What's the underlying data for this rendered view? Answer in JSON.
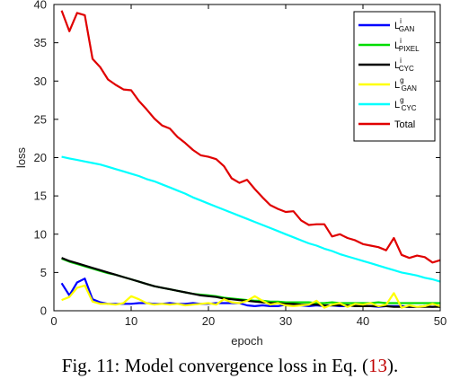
{
  "chart_data": {
    "type": "line",
    "xlabel": "epoch",
    "ylabel": "loss",
    "xlim": [
      0,
      50
    ],
    "ylim": [
      0,
      40
    ],
    "xticks": [
      0,
      10,
      20,
      30,
      40,
      50
    ],
    "yticks": [
      0,
      5,
      10,
      15,
      20,
      25,
      30,
      35,
      40
    ],
    "legend_position": "top-right",
    "grid": false,
    "series": [
      {
        "name": "L_GAN^i",
        "legend_base": "L",
        "legend_sub": "GAN",
        "legend_sup": "i",
        "color": "#0000ff",
        "x": [
          1,
          2,
          3,
          4,
          5,
          6,
          7,
          8,
          9,
          10,
          11,
          12,
          13,
          14,
          15,
          16,
          17,
          18,
          19,
          20,
          21,
          22,
          23,
          24,
          25,
          26,
          27,
          28,
          29,
          30,
          31,
          32,
          33,
          34,
          35,
          36,
          37,
          38,
          39,
          40,
          41,
          42,
          43,
          44,
          45,
          46,
          47,
          48,
          49,
          50
        ],
        "y": [
          3.6,
          2.0,
          3.7,
          4.2,
          1.5,
          1.1,
          0.9,
          0.9,
          0.9,
          0.9,
          1.0,
          1.0,
          0.9,
          0.9,
          1.0,
          0.9,
          0.9,
          1.0,
          0.9,
          0.9,
          1.0,
          1.0,
          1.0,
          1.0,
          0.7,
          0.6,
          0.7,
          0.6,
          0.6,
          0.8,
          0.8,
          0.7,
          0.6,
          0.7,
          0.6,
          0.7,
          0.6,
          0.6,
          0.8,
          0.6,
          0.6,
          0.5,
          0.6,
          0.6,
          0.6,
          0.5,
          0.5,
          0.6,
          0.5,
          0.6
        ]
      },
      {
        "name": "L_PIXEL^i",
        "legend_base": "L",
        "legend_sub": "PIXEL",
        "legend_sup": "i",
        "color": "#00dd00",
        "x": [
          1,
          2,
          3,
          4,
          5,
          6,
          7,
          8,
          9,
          10,
          11,
          12,
          13,
          14,
          15,
          16,
          17,
          18,
          19,
          20,
          21,
          22,
          23,
          24,
          25,
          26,
          27,
          28,
          29,
          30,
          31,
          32,
          33,
          34,
          35,
          36,
          37,
          38,
          39,
          40,
          41,
          42,
          43,
          44,
          45,
          46,
          47,
          48,
          49,
          50
        ],
        "y": [
          6.8,
          6.4,
          6.1,
          5.8,
          5.5,
          5.2,
          4.9,
          4.7,
          4.4,
          4.1,
          3.8,
          3.5,
          3.2,
          3.0,
          2.8,
          2.6,
          2.4,
          2.2,
          2.1,
          2.0,
          1.9,
          1.7,
          1.6,
          1.5,
          1.4,
          1.3,
          1.3,
          1.2,
          1.2,
          1.1,
          1.1,
          1.1,
          1.1,
          1.0,
          1.0,
          1.1,
          1.0,
          1.0,
          1.0,
          1.0,
          1.0,
          1.1,
          1.0,
          1.0,
          1.0,
          1.0,
          1.0,
          1.0,
          1.0,
          1.0
        ]
      },
      {
        "name": "L_CYC^i",
        "legend_base": "L",
        "legend_sub": "CYC",
        "legend_sup": "i",
        "color": "#000000",
        "x": [
          1,
          2,
          3,
          4,
          5,
          6,
          7,
          8,
          9,
          10,
          11,
          12,
          13,
          14,
          15,
          16,
          17,
          18,
          19,
          20,
          21,
          22,
          23,
          24,
          25,
          26,
          27,
          28,
          29,
          30,
          31,
          32,
          33,
          34,
          35,
          36,
          37,
          38,
          39,
          40,
          41,
          42,
          43,
          44,
          45,
          46,
          47,
          48,
          49,
          50
        ],
        "y": [
          6.9,
          6.5,
          6.2,
          5.9,
          5.6,
          5.3,
          5.0,
          4.7,
          4.4,
          4.1,
          3.8,
          3.5,
          3.2,
          3.0,
          2.8,
          2.6,
          2.4,
          2.2,
          2.0,
          1.9,
          1.8,
          1.6,
          1.5,
          1.4,
          1.3,
          1.2,
          1.1,
          1.0,
          1.0,
          0.9,
          0.9,
          0.8,
          0.8,
          0.8,
          0.7,
          0.7,
          0.7,
          0.7,
          0.6,
          0.6,
          0.6,
          0.6,
          0.6,
          0.5,
          0.5,
          0.5,
          0.5,
          0.5,
          0.5,
          0.5
        ]
      },
      {
        "name": "L_GAN^g",
        "legend_base": "L",
        "legend_sub": "GAN",
        "legend_sup": "g",
        "color": "#ffff00",
        "x": [
          1,
          2,
          3,
          4,
          5,
          6,
          7,
          8,
          9,
          10,
          11,
          12,
          13,
          14,
          15,
          16,
          17,
          18,
          19,
          20,
          21,
          22,
          23,
          24,
          25,
          26,
          27,
          28,
          29,
          30,
          31,
          32,
          33,
          34,
          35,
          36,
          37,
          38,
          39,
          40,
          41,
          42,
          43,
          44,
          45,
          46,
          47,
          48,
          49,
          50
        ],
        "y": [
          1.4,
          1.8,
          3.0,
          3.3,
          1.2,
          0.9,
          0.9,
          0.8,
          1.0,
          1.9,
          1.5,
          1.0,
          0.8,
          0.9,
          0.8,
          0.9,
          0.7,
          0.8,
          0.9,
          1.0,
          0.8,
          1.5,
          1.1,
          1.0,
          1.3,
          1.9,
          1.3,
          0.8,
          1.0,
          0.7,
          0.6,
          0.7,
          0.8,
          1.3,
          0.4,
          0.8,
          1.0,
          0.5,
          0.9,
          0.8,
          1.0,
          0.6,
          0.8,
          2.3,
          0.4,
          0.7,
          0.5,
          0.6,
          0.9,
          0.6
        ]
      },
      {
        "name": "L_CYC^g",
        "legend_base": "L",
        "legend_sub": "CYC",
        "legend_sup": "g",
        "color": "#00ffff",
        "x": [
          1,
          2,
          3,
          4,
          5,
          6,
          7,
          8,
          9,
          10,
          11,
          12,
          13,
          14,
          15,
          16,
          17,
          18,
          19,
          20,
          21,
          22,
          23,
          24,
          25,
          26,
          27,
          28,
          29,
          30,
          31,
          32,
          33,
          34,
          35,
          36,
          37,
          38,
          39,
          40,
          41,
          42,
          43,
          44,
          45,
          46,
          47,
          48,
          49,
          50
        ],
        "y": [
          20.1,
          19.9,
          19.7,
          19.5,
          19.3,
          19.1,
          18.8,
          18.5,
          18.2,
          17.9,
          17.6,
          17.2,
          16.9,
          16.5,
          16.1,
          15.7,
          15.3,
          14.8,
          14.4,
          14.0,
          13.6,
          13.2,
          12.8,
          12.4,
          12.0,
          11.6,
          11.2,
          10.8,
          10.4,
          10.0,
          9.6,
          9.2,
          8.8,
          8.5,
          8.1,
          7.8,
          7.4,
          7.1,
          6.8,
          6.5,
          6.2,
          5.9,
          5.6,
          5.3,
          5.0,
          4.8,
          4.6,
          4.3,
          4.1,
          3.8
        ]
      },
      {
        "name": "Total",
        "legend_base": "Total",
        "legend_sub": "",
        "legend_sup": "",
        "color": "#e00000",
        "x": [
          1,
          2,
          3,
          4,
          5,
          6,
          7,
          8,
          9,
          10,
          11,
          12,
          13,
          14,
          15,
          16,
          17,
          18,
          19,
          20,
          21,
          22,
          23,
          24,
          25,
          26,
          27,
          28,
          29,
          30,
          31,
          32,
          33,
          34,
          35,
          36,
          37,
          38,
          39,
          40,
          41,
          42,
          43,
          44,
          45,
          46,
          47,
          48,
          49,
          50
        ],
        "y": [
          39.2,
          36.5,
          38.9,
          38.6,
          32.9,
          31.8,
          30.2,
          29.5,
          28.9,
          28.8,
          27.4,
          26.3,
          25.1,
          24.2,
          23.8,
          22.7,
          21.9,
          21.0,
          20.3,
          20.1,
          19.8,
          18.9,
          17.3,
          16.7,
          17.1,
          15.9,
          14.8,
          13.8,
          13.3,
          12.9,
          13.0,
          11.8,
          11.2,
          11.3,
          11.3,
          9.7,
          10.0,
          9.5,
          9.2,
          8.7,
          8.5,
          8.3,
          7.9,
          9.5,
          7.3,
          6.9,
          7.2,
          7.0,
          6.3,
          6.6
        ]
      }
    ]
  },
  "caption": {
    "prefix": "Fig. 11: Model convergence loss in Eq. (",
    "ref": "13",
    "suffix": ")."
  }
}
